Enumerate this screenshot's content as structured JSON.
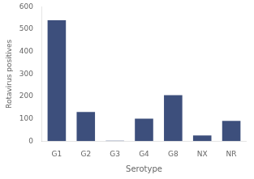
{
  "chart_data": {
    "type": "bar",
    "categories": [
      "G1",
      "G2",
      "G3",
      "G4",
      "G8",
      "NX",
      "NR"
    ],
    "values": [
      540,
      130,
      2,
      100,
      205,
      25,
      90
    ],
    "color": "#3d4f7c",
    "xlabel": "Serotype",
    "ylabel": "Rotavirus positives",
    "ylim": [
      0,
      600
    ],
    "yticks": [
      0,
      100,
      200,
      300,
      400,
      500,
      600
    ],
    "grid": false
  }
}
